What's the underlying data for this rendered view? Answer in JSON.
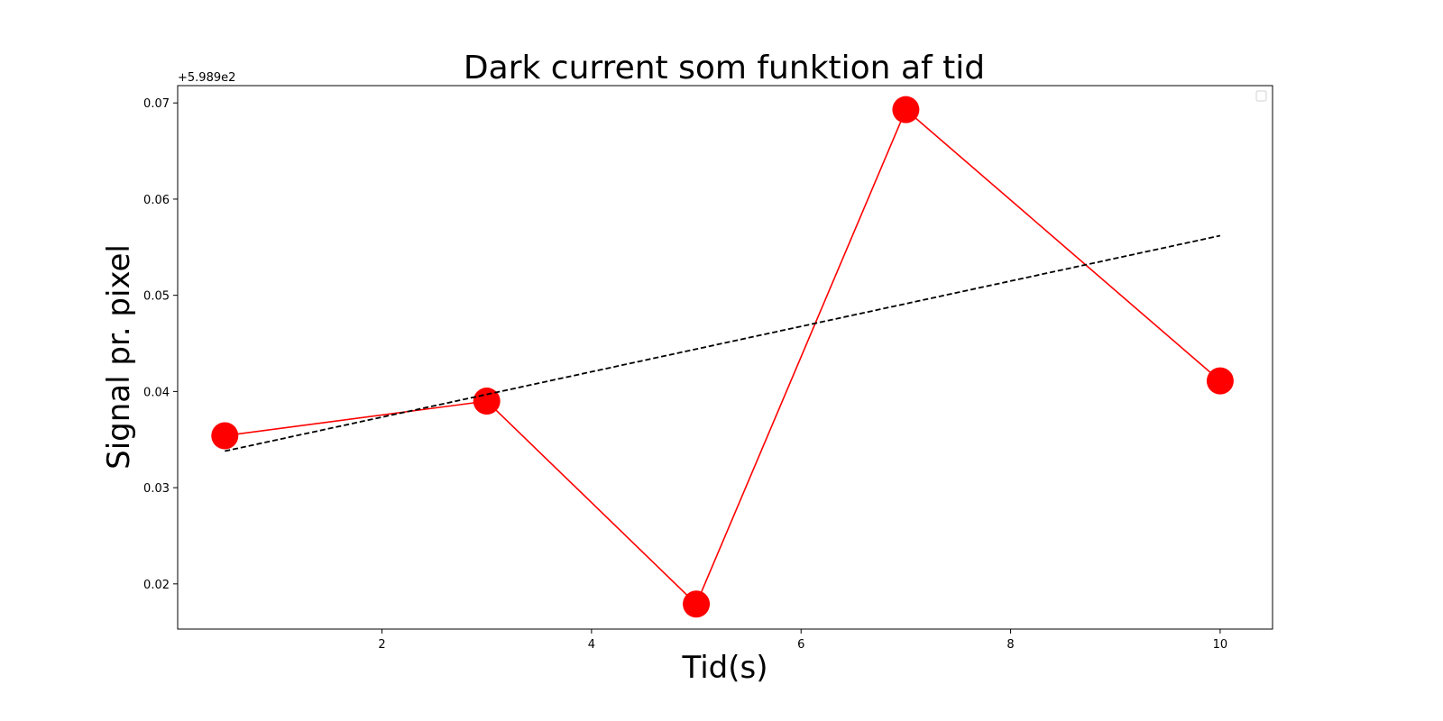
{
  "chart_data": {
    "type": "line",
    "title": "Dark current som funktion af tid",
    "xlabel": "Tid(s)",
    "ylabel": "Signal pr. pixel",
    "y_offset_label": "+5.989e2",
    "xlim": [
      0.05,
      10.5
    ],
    "ylim": [
      0.0153,
      0.0718
    ],
    "x_ticks": [
      2,
      4,
      6,
      8,
      10
    ],
    "y_ticks": [
      0.02,
      0.03,
      0.04,
      0.05,
      0.06,
      0.07
    ],
    "y_tick_labels": [
      "0.02",
      "0.03",
      "0.04",
      "0.05",
      "0.06",
      "0.07"
    ],
    "grid": false,
    "legend": {
      "placement": "top-right",
      "entries": []
    },
    "series": [
      {
        "style": "solid",
        "marker": "circle",
        "color": "#ff0000",
        "x": [
          0.5,
          3,
          5,
          7,
          10
        ],
        "y": [
          0.0354,
          0.039,
          0.0179,
          0.0693,
          0.0411
        ]
      },
      {
        "style": "dashed",
        "marker": "none",
        "color": "#000000",
        "x": [
          0.5,
          10
        ],
        "y": [
          0.0338,
          0.0562
        ]
      }
    ]
  }
}
